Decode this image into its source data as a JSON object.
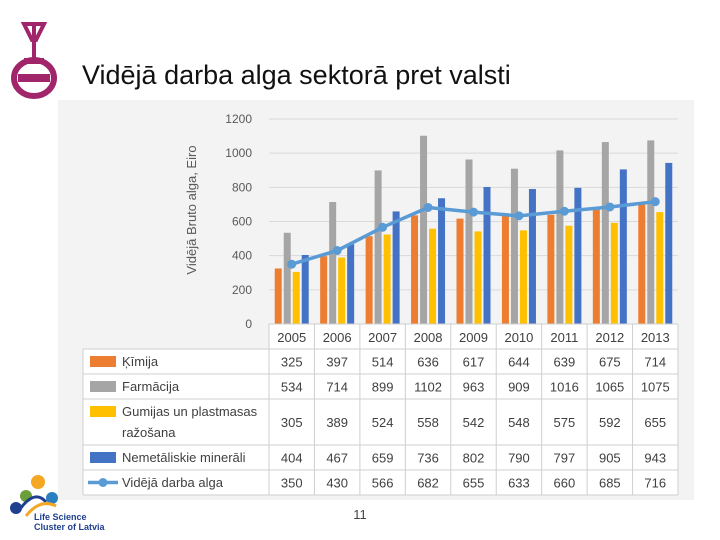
{
  "slide": {
    "title": "Vidējā darba alga sektorā pret valsti",
    "page_number": "11",
    "logo_bottom_line1": "Life Science",
    "logo_bottom_line2": "Cluster of Latvia"
  },
  "colors": {
    "kimija": "#ed7d31",
    "farmacija": "#a5a5a5",
    "gumijas": "#ffc000",
    "nemetaliskie": "#4472c4",
    "alga": "#5b9bd5",
    "logo": "#a0256a"
  },
  "chart_data": {
    "type": "bar",
    "ylabel": "Vidējā Bruto  alga, Eiro",
    "ylim": [
      0,
      1200
    ],
    "yticks": [
      0,
      200,
      400,
      600,
      800,
      1000,
      1200
    ],
    "grid": true,
    "categories": [
      "2005",
      "2006",
      "2007",
      "2008",
      "2009",
      "2010",
      "2011",
      "2012",
      "2013"
    ],
    "series": [
      {
        "name": "Ķīmija",
        "kind": "bar",
        "color": "#ed7d31",
        "values": [
          325,
          397,
          514,
          636,
          617,
          644,
          639,
          675,
          714
        ]
      },
      {
        "name": "Farmācija",
        "kind": "bar",
        "color": "#a5a5a5",
        "values": [
          534,
          714,
          899,
          1102,
          963,
          909,
          1016,
          1065,
          1075
        ]
      },
      {
        "name": "Gumijas un plastmasas ražošana",
        "kind": "bar",
        "color": "#ffc000",
        "values": [
          305,
          389,
          524,
          558,
          542,
          548,
          575,
          592,
          655
        ]
      },
      {
        "name": "Nemetāliskie minerāli",
        "kind": "bar",
        "color": "#4472c4",
        "values": [
          404,
          467,
          659,
          736,
          802,
          790,
          797,
          905,
          943
        ]
      },
      {
        "name": "Vidējā darba alga",
        "kind": "line",
        "color": "#5b9bd5",
        "values": [
          350,
          430,
          566,
          682,
          655,
          633,
          660,
          685,
          716
        ]
      }
    ],
    "legend_lines": [
      [
        "Ķīmija"
      ],
      [
        "Farmācija"
      ],
      [
        "Gumijas un plastmasas",
        "ražošana"
      ],
      [
        "Nemetāliskie minerāli"
      ],
      [
        "Vidējā darba alga"
      ]
    ],
    "legend": "data-table-left"
  }
}
